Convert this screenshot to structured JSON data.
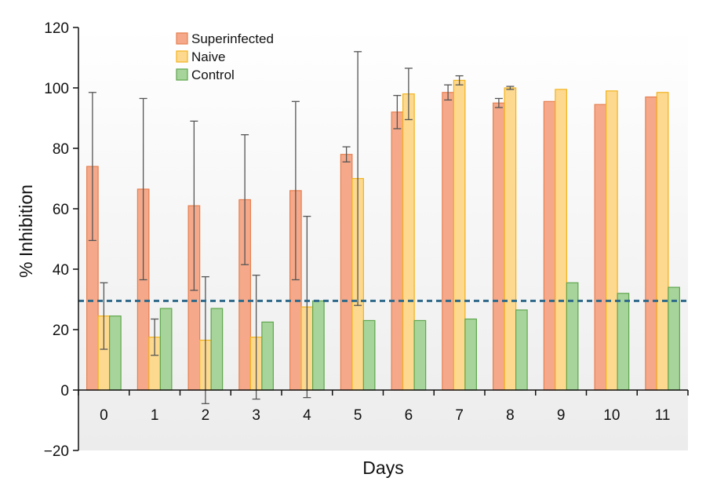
{
  "chart_data": {
    "type": "bar",
    "title": "",
    "xlabel": "Days",
    "ylabel": "% Inhibition",
    "categories": [
      "0",
      "1",
      "2",
      "3",
      "4",
      "5",
      "6",
      "7",
      "8",
      "9",
      "10",
      "11"
    ],
    "ylim": [
      -20,
      120
    ],
    "yticks": [
      -20,
      0,
      20,
      40,
      60,
      80,
      100,
      120
    ],
    "grid": false,
    "legend_position": "top-left",
    "threshold_line": {
      "value": 29.5,
      "style": "dashed",
      "color": "#2f6a8a"
    },
    "series": [
      {
        "name": "Superinfected",
        "color": "#f5a98a",
        "edge": "#e67f4f",
        "values": [
          74,
          66.5,
          61,
          63,
          66,
          78,
          92,
          98.5,
          95,
          95.5,
          94.5,
          97
        ],
        "err": [
          24.5,
          30,
          28,
          21.5,
          29.5,
          2.5,
          5.5,
          2.5,
          1.5,
          null,
          null,
          null
        ]
      },
      {
        "name": "Naive",
        "color": "#fdd98f",
        "edge": "#f2b21c",
        "values": [
          24.5,
          17.5,
          16.5,
          17.5,
          27.5,
          70,
          98,
          102.5,
          100,
          99.5,
          99,
          98.5
        ],
        "err": [
          11,
          6,
          21,
          20.5,
          30,
          42,
          8.5,
          1.5,
          0.5,
          null,
          null,
          null
        ]
      },
      {
        "name": "Control",
        "color": "#a7d49a",
        "edge": "#5fa64e",
        "values": [
          24.5,
          27,
          27,
          22.5,
          29.5,
          23,
          23,
          23.5,
          26.5,
          35.5,
          32,
          34
        ],
        "err": [
          null,
          null,
          null,
          null,
          null,
          null,
          null,
          null,
          null,
          null,
          null,
          null
        ]
      }
    ]
  }
}
